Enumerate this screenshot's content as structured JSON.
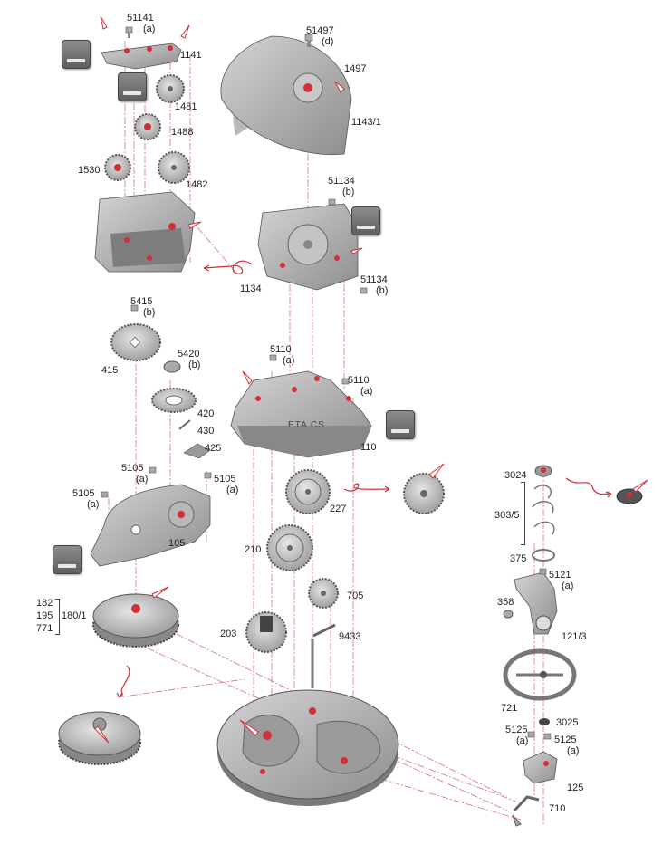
{
  "diagram_title": "",
  "parts": {
    "p51141": "51141",
    "p51141_sub": "(a)",
    "p1141": "1141",
    "p1481": "1481",
    "p1488": "1488",
    "p1530": "1530",
    "p1482": "1482",
    "p51497": "51497",
    "p51497_sub": "(d)",
    "p1497": "1497",
    "p1143_1": "1143/1",
    "p51134_top": "51134",
    "p51134_top_sub": "(b)",
    "p51134_bot": "51134",
    "p51134_bot_sub": "(b)",
    "p1134": "1134",
    "p5415": "5415",
    "p5415_sub": "(b)",
    "p415": "415",
    "p5420": "5420",
    "p5420_sub": "(b)",
    "p420": "420",
    "p430": "430",
    "p425": "425",
    "p5110_a": "5110",
    "p5110_a_sub": "(a)",
    "p5110_b": "5110",
    "p5110_b_sub": "(a)",
    "p110": "110",
    "p5105_l": "5105",
    "p5105_l_sub": "(a)",
    "p5105_m": "5105",
    "p5105_m_sub": "(a)",
    "p5105_r": "5105",
    "p5105_r_sub": "(a)",
    "p105": "105",
    "p227": "227",
    "p210": "210",
    "p705": "705",
    "p203": "203",
    "p9433": "9433",
    "p182": "182",
    "p195": "195",
    "p771": "771",
    "p180_1": "180/1",
    "p3024": "3024",
    "p303_5": "303/5",
    "p375": "375",
    "p5121": "5121",
    "p5121_sub": "(a)",
    "p358": "358",
    "p121_3": "121/3",
    "p721": "721",
    "p3025": "3025",
    "p5125_l": "5125",
    "p5125_l_sub": "(a)",
    "p5125_r": "5125",
    "p5125_r_sub": "(a)",
    "p125": "125",
    "p710": "710"
  },
  "plate_engraving": "ETA CS",
  "icons": {
    "oil_can": "oil-can-icon",
    "lubrication_pin": "lubrication-point-icon"
  },
  "colors": {
    "accent": "#d0303a",
    "guide": "#d87080",
    "metal_light": "#c9c9c9",
    "metal_mid": "#a6a6a6",
    "metal_dark": "#7a7a7a"
  }
}
